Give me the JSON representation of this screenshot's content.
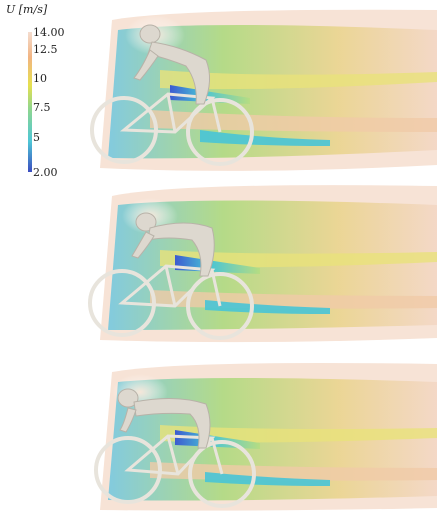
{
  "colorbar": {
    "title": "U [m/s]",
    "ticks": [
      {
        "label": "14.00",
        "value": 14.0
      },
      {
        "label": "12.5",
        "value": 12.5
      },
      {
        "label": "10",
        "value": 10.0
      },
      {
        "label": "7.5",
        "value": 7.5
      },
      {
        "label": "5",
        "value": 5.0
      },
      {
        "label": "2.00",
        "value": 2.0
      }
    ],
    "range": [
      2.0,
      14.0
    ],
    "colors": [
      "#3b4cc0",
      "#4fc7d6",
      "#8fd68f",
      "#e6e04f",
      "#f2b482",
      "#f4ddd0"
    ]
  },
  "panels": [
    {
      "name": "top",
      "posture": "upright"
    },
    {
      "name": "middle",
      "posture": "aero-intermediate"
    },
    {
      "name": "bottom",
      "posture": "aero-low"
    }
  ]
}
